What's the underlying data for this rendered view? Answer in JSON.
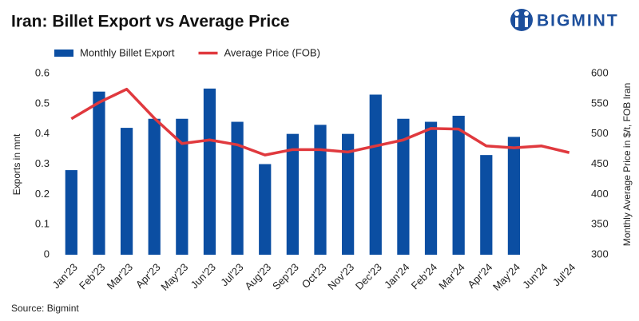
{
  "chart_data": {
    "type": "bar_line",
    "title": "Iran: Billet Export vs Average Price",
    "logo": "BIGMINT",
    "source": "Source: Bigmint",
    "ylabel": "Exports in mnt",
    "y2label": "Monthly Average Price in $/t, FOB Iran",
    "categories": [
      "Jan'23",
      "Feb'23",
      "Mar'23",
      "Apr'23",
      "May'23",
      "Jun'23",
      "Jul'23",
      "Aug'23",
      "Sep'23",
      "Oct'23",
      "Nov'23",
      "Dec'23",
      "Jan'24",
      "Feb'24",
      "Mar'24",
      "Apr'24",
      "May'24",
      "Jun'24",
      "Jul'24"
    ],
    "series": [
      {
        "name": "Monthly Billet Export",
        "type": "bar",
        "color": "#0b4ea2",
        "values": [
          0.28,
          0.54,
          0.42,
          0.45,
          0.45,
          0.55,
          0.44,
          0.3,
          0.4,
          0.43,
          0.4,
          0.53,
          0.45,
          0.44,
          0.46,
          0.33,
          0.39,
          null,
          null
        ]
      },
      {
        "name": "Average Price (FOB)",
        "type": "line",
        "axis": "y2",
        "color": "#e0393e",
        "values": [
          525,
          552,
          574,
          526,
          484,
          490,
          482,
          465,
          474,
          474,
          470,
          480,
          490,
          509,
          508,
          480,
          477,
          480,
          469
        ]
      }
    ],
    "ylim": [
      0,
      0.6
    ],
    "yticks": [
      0,
      0.1,
      0.2,
      0.3,
      0.4,
      0.5,
      0.6
    ],
    "y2lim": [
      300,
      600
    ],
    "y2ticks": [
      300,
      350,
      400,
      450,
      500,
      550,
      600
    ],
    "grid": false
  }
}
